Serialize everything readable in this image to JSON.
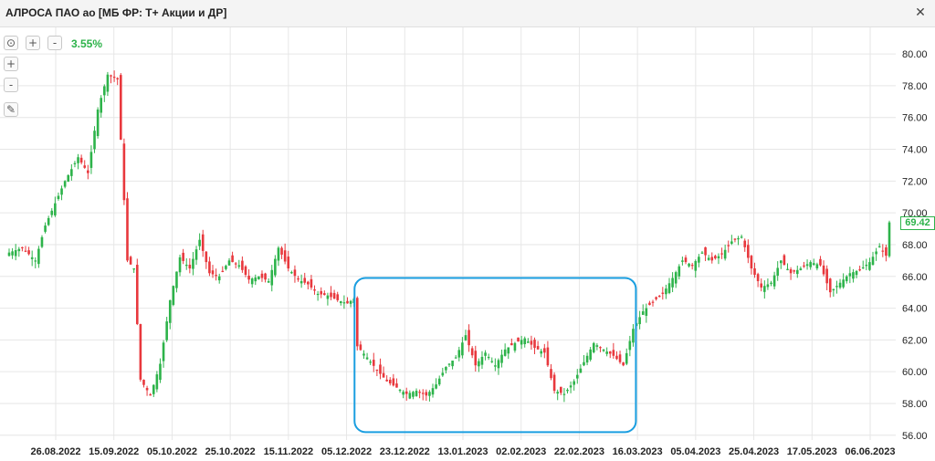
{
  "window": {
    "title": "АЛРОСА ПАО ао [МБ ФР: Т+ Акции и ДР]",
    "close_label": "✕"
  },
  "toolbar": {
    "reset_icon": "⊙",
    "zoom_in_label": "+",
    "zoom_out_label": "-",
    "change_percent": "3.55%"
  },
  "side_toolbar": {
    "zoom_in_label": "+",
    "zoom_out_label": "-",
    "pencil_icon": "✎"
  },
  "last_price_label": "69.42",
  "colors": {
    "up": "#2db34a",
    "down": "#e8383d",
    "highlight_box": "#1a9ee0",
    "grid": "#e6e6e6"
  },
  "chart_data": {
    "type": "candlestick",
    "ylim": [
      55.5,
      80.3
    ],
    "y_ticks": [
      "56.00",
      "58.00",
      "60.00",
      "62.00",
      "64.00",
      "66.00",
      "68.00",
      "70.00",
      "72.00",
      "74.00",
      "76.00",
      "78.00",
      "80.00"
    ],
    "x_ticks": [
      "26.08.2022",
      "15.09.2022",
      "05.10.2022",
      "25.10.2022",
      "15.11.2022",
      "05.12.2022",
      "23.12.2022",
      "13.01.2023",
      "02.02.2023",
      "22.02.2023",
      "16.03.2023",
      "05.04.2023",
      "25.04.2023",
      "17.05.2023",
      "06.06.2023"
    ],
    "last_price": 69.42,
    "anchors": [
      [
        0,
        67.5
      ],
      [
        4,
        67.8
      ],
      [
        8,
        67.0
      ],
      [
        11,
        69.2
      ],
      [
        14,
        70.6
      ],
      [
        17,
        72.0
      ],
      [
        21,
        73.5
      ],
      [
        24,
        72.5
      ],
      [
        27,
        76.5
      ],
      [
        30,
        78.7
      ],
      [
        33,
        78.4
      ],
      [
        36,
        67.0
      ],
      [
        38,
        66.5
      ],
      [
        40,
        59.5
      ],
      [
        43,
        58.5
      ],
      [
        46,
        60.5
      ],
      [
        49,
        64.5
      ],
      [
        52,
        67.2
      ],
      [
        55,
        66.5
      ],
      [
        58,
        68.3
      ],
      [
        61,
        66.2
      ],
      [
        64,
        66.0
      ],
      [
        67,
        67.0
      ],
      [
        70,
        66.7
      ],
      [
        73,
        65.8
      ],
      [
        76,
        66.0
      ],
      [
        79,
        65.7
      ],
      [
        82,
        67.8
      ],
      [
        85,
        66.5
      ],
      [
        88,
        65.8
      ],
      [
        91,
        65.5
      ],
      [
        94,
        64.9
      ],
      [
        97,
        64.8
      ],
      [
        100,
        64.5
      ],
      [
        103,
        64.3
      ],
      [
        105,
        64.6
      ],
      [
        106,
        61.6
      ],
      [
        109,
        60.9
      ],
      [
        112,
        60.1
      ],
      [
        115,
        59.4
      ],
      [
        118,
        59.0
      ],
      [
        121,
        58.6
      ],
      [
        124,
        58.8
      ],
      [
        127,
        58.5
      ],
      [
        130,
        59.2
      ],
      [
        133,
        60.3
      ],
      [
        136,
        60.9
      ],
      [
        139,
        62.3
      ],
      [
        142,
        60.4
      ],
      [
        145,
        61.2
      ],
      [
        148,
        60.4
      ],
      [
        151,
        61.4
      ],
      [
        154,
        61.8
      ],
      [
        157,
        62.1
      ],
      [
        160,
        61.5
      ],
      [
        163,
        61.2
      ],
      [
        166,
        58.8
      ],
      [
        169,
        58.6
      ],
      [
        172,
        59.4
      ],
      [
        175,
        60.6
      ],
      [
        178,
        61.8
      ],
      [
        181,
        61.4
      ],
      [
        184,
        61.0
      ],
      [
        187,
        60.4
      ],
      [
        190,
        62.7
      ],
      [
        193,
        63.8
      ],
      [
        196,
        64.4
      ],
      [
        199,
        64.9
      ],
      [
        202,
        65.9
      ],
      [
        205,
        67.0
      ],
      [
        208,
        66.7
      ],
      [
        211,
        67.5
      ],
      [
        214,
        67.0
      ],
      [
        217,
        67.4
      ],
      [
        220,
        68.2
      ],
      [
        223,
        68.5
      ],
      [
        226,
        66.5
      ],
      [
        229,
        65.3
      ],
      [
        232,
        65.6
      ],
      [
        235,
        67.0
      ],
      [
        238,
        66.2
      ],
      [
        241,
        66.5
      ],
      [
        244,
        66.9
      ],
      [
        247,
        66.7
      ],
      [
        250,
        65.0
      ],
      [
        253,
        65.6
      ],
      [
        256,
        66.2
      ],
      [
        259,
        66.4
      ],
      [
        262,
        66.9
      ],
      [
        265,
        67.9
      ],
      [
        267,
        67.3
      ],
      [
        268,
        69.4
      ]
    ],
    "shapes": [
      {
        "type": "rounded-rectangle",
        "x_range": [
          106,
          190
        ],
        "y_range": [
          56.2,
          65.9
        ],
        "color": "#1a9ee0"
      }
    ]
  }
}
